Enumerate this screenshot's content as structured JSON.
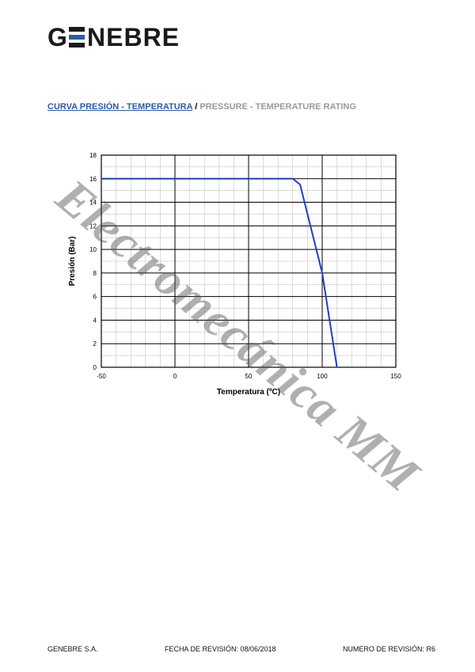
{
  "logo": {
    "text": "GENEBRE",
    "color_text": "#1a1a1a",
    "color_accent": "#2b5ca8"
  },
  "section_title": {
    "es": "CURVA PRESIÓN - TEMPERATURA",
    "separator": " / ",
    "en": "PRESSURE - TEMPERATURE RATING"
  },
  "chart": {
    "type": "line",
    "xlabel": "Temperatura (ºC)",
    "ylabel": "Presión (Bar)",
    "label_fontsize": 10,
    "tick_fontsize": 8,
    "xlim": [
      -50,
      150
    ],
    "ylim": [
      0,
      18
    ],
    "xtick_step": 50,
    "ytick_step": 2,
    "x_minor_per_major": 5,
    "y_minor_per_major": 2,
    "background_color": "#ffffff",
    "grid_major_color": "#000000",
    "grid_minor_color": "#b8b8b8",
    "border_color": "#000000",
    "line_color": "#1f3fbf",
    "line_width": 2,
    "data": {
      "x": [
        -50,
        -40,
        70,
        80,
        85,
        100,
        110
      ],
      "y": [
        16,
        16,
        16,
        16,
        15.5,
        8,
        0
      ]
    }
  },
  "footer": {
    "company": "GENEBRE S.A.",
    "rev_date_label": "FECHA DE REVISIÓN:",
    "rev_date": "08/06/2018",
    "rev_num_label": "NUMERO DE REVISIÓN:",
    "rev_num": "R6"
  },
  "watermark": {
    "text": "Electromecánica MM",
    "color": "rgba(80,80,80,0.45)",
    "fontsize": 62,
    "angle_deg": 40
  }
}
